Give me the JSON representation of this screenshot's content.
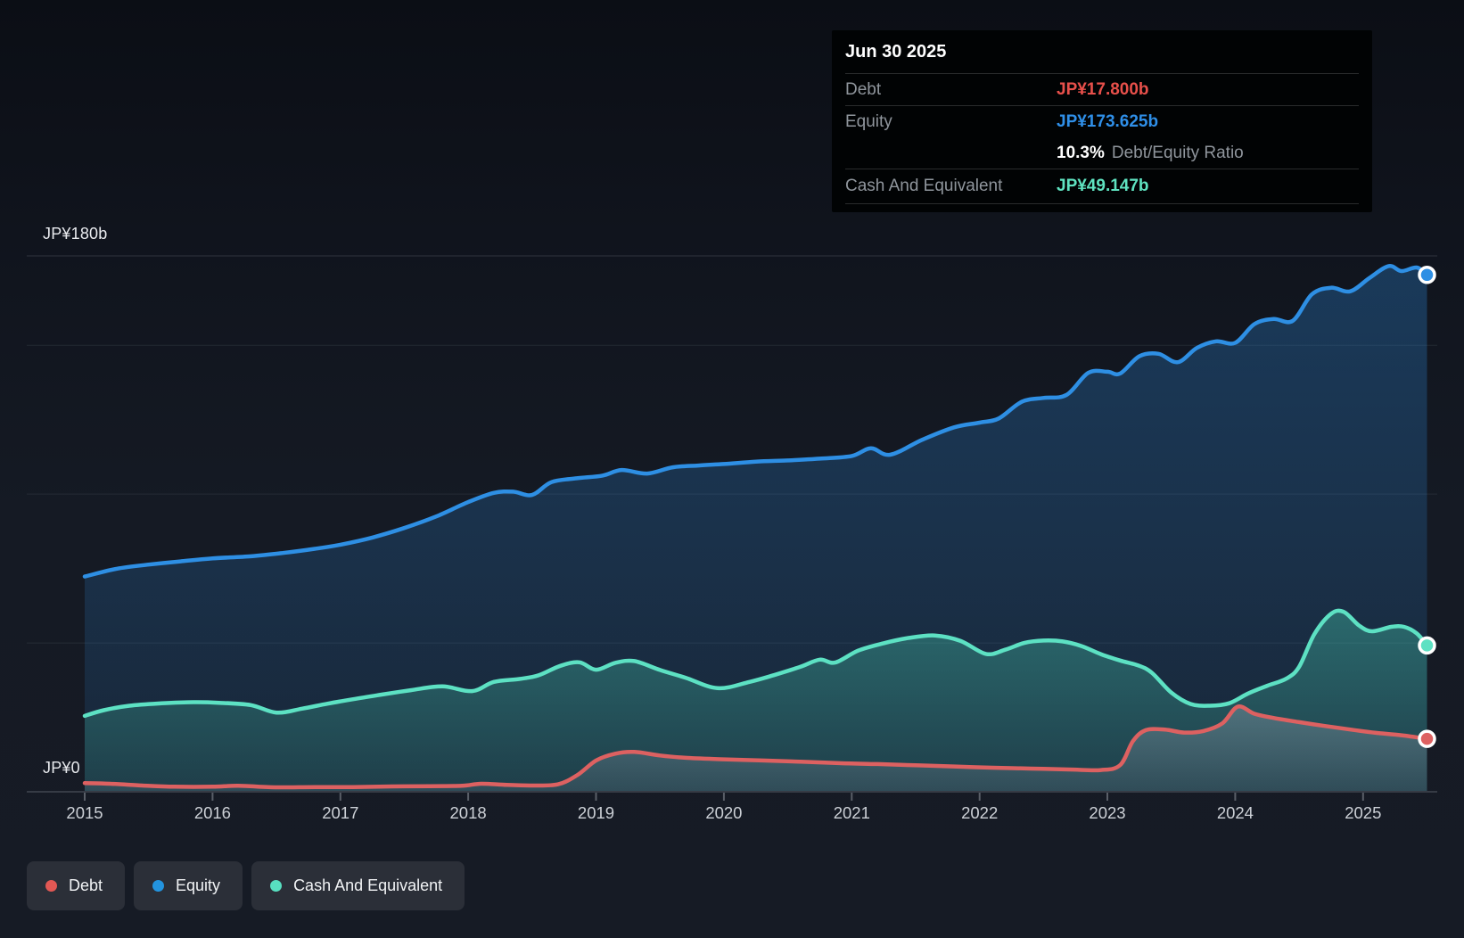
{
  "tooltip": {
    "date": "Jun 30 2025",
    "debt": {
      "label": "Debt",
      "value": "JP¥17.800b",
      "color": "#e8504b"
    },
    "equity": {
      "label": "Equity",
      "value": "JP¥173.625b",
      "color": "#2f8fe8"
    },
    "ratio": {
      "value": "10.3%",
      "label": "Debt/Equity Ratio"
    },
    "cash": {
      "label": "Cash And Equivalent",
      "value": "JP¥49.147b",
      "color": "#5fe3c1"
    }
  },
  "legend": {
    "items": [
      {
        "label": "Debt",
        "color": "#e25854"
      },
      {
        "label": "Equity",
        "color": "#2394df"
      },
      {
        "label": "Cash And Equivalent",
        "color": "#58dfc0"
      }
    ]
  },
  "colors": {
    "background": "#151a24",
    "tooltip_background": "#010304",
    "debt": "#dd6161",
    "equity": "#2e8fe4",
    "cash": "#5de1c3",
    "debt_fill": "#aab2c2",
    "gridline": "#ffffff",
    "axis_line": "#363b45",
    "tick": "#5a5f68",
    "year_label": "#ccd0d6"
  },
  "chart_data": {
    "type": "area",
    "x_ticks": [
      2015,
      2016,
      2017,
      2018,
      2019,
      2020,
      2021,
      2022,
      2023,
      2024,
      2025
    ],
    "x_range": [
      2015.0,
      2025.5
    ],
    "y_axis": {
      "top_label": "JP¥180b",
      "zero_label": "JP¥0",
      "max": 180,
      "unit": "JP¥ billions",
      "gridline_values": [
        180,
        150,
        100,
        50,
        0
      ]
    },
    "legend_position": "bottom-left",
    "series": [
      {
        "name": "Equity",
        "color": "#2e8fe4",
        "end_value": 173.625,
        "points": [
          [
            2015.0,
            72.3
          ],
          [
            2015.25,
            74.9
          ],
          [
            2015.5,
            76.3
          ],
          [
            2015.75,
            77.4
          ],
          [
            2016.0,
            78.4
          ],
          [
            2016.3,
            79.1
          ],
          [
            2016.55,
            80.2
          ],
          [
            2016.8,
            81.6
          ],
          [
            2017.0,
            83.0
          ],
          [
            2017.25,
            85.4
          ],
          [
            2017.5,
            88.6
          ],
          [
            2017.75,
            92.5
          ],
          [
            2018.0,
            97.3
          ],
          [
            2018.2,
            100.4
          ],
          [
            2018.35,
            100.8
          ],
          [
            2018.5,
            99.7
          ],
          [
            2018.65,
            104.0
          ],
          [
            2018.85,
            105.3
          ],
          [
            2019.05,
            106.2
          ],
          [
            2019.2,
            108.1
          ],
          [
            2019.4,
            106.9
          ],
          [
            2019.6,
            109.0
          ],
          [
            2019.8,
            109.6
          ],
          [
            2020.0,
            110.1
          ],
          [
            2020.25,
            110.9
          ],
          [
            2020.5,
            111.3
          ],
          [
            2020.75,
            111.9
          ],
          [
            2021.0,
            112.8
          ],
          [
            2021.15,
            115.4
          ],
          [
            2021.3,
            113.2
          ],
          [
            2021.55,
            118.2
          ],
          [
            2021.8,
            122.4
          ],
          [
            2022.0,
            124.0
          ],
          [
            2022.15,
            125.4
          ],
          [
            2022.33,
            131.0
          ],
          [
            2022.5,
            132.3
          ],
          [
            2022.68,
            133.3
          ],
          [
            2022.85,
            140.7
          ],
          [
            2023.0,
            141.1
          ],
          [
            2023.1,
            140.5
          ],
          [
            2023.25,
            146.3
          ],
          [
            2023.4,
            147.1
          ],
          [
            2023.55,
            144.3
          ],
          [
            2023.7,
            149.1
          ],
          [
            2023.85,
            151.3
          ],
          [
            2024.0,
            150.8
          ],
          [
            2024.15,
            157.1
          ],
          [
            2024.3,
            158.8
          ],
          [
            2024.45,
            158.2
          ],
          [
            2024.6,
            167.1
          ],
          [
            2024.75,
            169.3
          ],
          [
            2024.9,
            168.1
          ],
          [
            2025.05,
            172.6
          ],
          [
            2025.2,
            176.6
          ],
          [
            2025.3,
            174.9
          ],
          [
            2025.42,
            176.1
          ],
          [
            2025.5,
            173.625
          ]
        ]
      },
      {
        "name": "Cash And Equivalent",
        "color": "#5de1c3",
        "end_value": 49.147,
        "points": [
          [
            2015.0,
            25.5
          ],
          [
            2015.15,
            27.4
          ],
          [
            2015.35,
            28.9
          ],
          [
            2015.6,
            29.7
          ],
          [
            2015.85,
            30.1
          ],
          [
            2016.05,
            29.9
          ],
          [
            2016.3,
            29.1
          ],
          [
            2016.5,
            26.6
          ],
          [
            2016.7,
            27.9
          ],
          [
            2016.9,
            29.6
          ],
          [
            2017.1,
            31.1
          ],
          [
            2017.3,
            32.5
          ],
          [
            2017.55,
            34.1
          ],
          [
            2017.8,
            35.4
          ],
          [
            2018.03,
            33.8
          ],
          [
            2018.2,
            36.9
          ],
          [
            2018.4,
            37.9
          ],
          [
            2018.55,
            39.1
          ],
          [
            2018.72,
            42.3
          ],
          [
            2018.87,
            43.5
          ],
          [
            2019.0,
            41.0
          ],
          [
            2019.15,
            43.3
          ],
          [
            2019.3,
            43.9
          ],
          [
            2019.5,
            40.9
          ],
          [
            2019.7,
            38.3
          ],
          [
            2019.95,
            34.8
          ],
          [
            2020.2,
            36.9
          ],
          [
            2020.4,
            39.3
          ],
          [
            2020.6,
            42.0
          ],
          [
            2020.75,
            44.4
          ],
          [
            2020.87,
            43.4
          ],
          [
            2021.05,
            47.4
          ],
          [
            2021.25,
            49.9
          ],
          [
            2021.45,
            51.7
          ],
          [
            2021.65,
            52.5
          ],
          [
            2021.85,
            50.7
          ],
          [
            2022.05,
            46.3
          ],
          [
            2022.2,
            47.7
          ],
          [
            2022.35,
            50.0
          ],
          [
            2022.5,
            50.8
          ],
          [
            2022.65,
            50.5
          ],
          [
            2022.8,
            48.9
          ],
          [
            2022.95,
            46.2
          ],
          [
            2023.1,
            44.1
          ],
          [
            2023.25,
            42.3
          ],
          [
            2023.35,
            39.9
          ],
          [
            2023.5,
            33.3
          ],
          [
            2023.65,
            29.5
          ],
          [
            2023.8,
            28.9
          ],
          [
            2023.95,
            29.7
          ],
          [
            2024.1,
            33.0
          ],
          [
            2024.25,
            35.6
          ],
          [
            2024.4,
            38.0
          ],
          [
            2024.5,
            42.0
          ],
          [
            2024.62,
            53.0
          ],
          [
            2024.75,
            59.8
          ],
          [
            2024.85,
            60.4
          ],
          [
            2024.97,
            55.8
          ],
          [
            2025.07,
            53.9
          ],
          [
            2025.22,
            55.4
          ],
          [
            2025.32,
            55.4
          ],
          [
            2025.42,
            53.2
          ],
          [
            2025.5,
            49.147
          ]
        ]
      },
      {
        "name": "Debt",
        "color": "#dd6161",
        "end_value": 17.8,
        "points": [
          [
            2015.0,
            2.9
          ],
          [
            2015.2,
            2.7
          ],
          [
            2015.45,
            2.1
          ],
          [
            2015.7,
            1.7
          ],
          [
            2016.0,
            1.7
          ],
          [
            2016.2,
            2.0
          ],
          [
            2016.5,
            1.5
          ],
          [
            2016.8,
            1.6
          ],
          [
            2017.1,
            1.6
          ],
          [
            2017.4,
            1.8
          ],
          [
            2017.7,
            1.9
          ],
          [
            2017.95,
            2.0
          ],
          [
            2018.1,
            2.7
          ],
          [
            2018.3,
            2.3
          ],
          [
            2018.5,
            2.1
          ],
          [
            2018.7,
            2.5
          ],
          [
            2018.85,
            5.5
          ],
          [
            2019.0,
            10.5
          ],
          [
            2019.15,
            12.8
          ],
          [
            2019.3,
            13.4
          ],
          [
            2019.5,
            12.2
          ],
          [
            2019.7,
            11.4
          ],
          [
            2020.0,
            10.9
          ],
          [
            2020.3,
            10.5
          ],
          [
            2020.6,
            10.1
          ],
          [
            2020.9,
            9.6
          ],
          [
            2021.2,
            9.3
          ],
          [
            2021.5,
            8.9
          ],
          [
            2021.8,
            8.5
          ],
          [
            2022.1,
            8.1
          ],
          [
            2022.4,
            7.8
          ],
          [
            2022.7,
            7.5
          ],
          [
            2022.95,
            7.3
          ],
          [
            2023.1,
            9.0
          ],
          [
            2023.2,
            17.0
          ],
          [
            2023.3,
            20.7
          ],
          [
            2023.45,
            20.9
          ],
          [
            2023.6,
            19.9
          ],
          [
            2023.75,
            20.4
          ],
          [
            2023.9,
            23.0
          ],
          [
            2024.02,
            28.6
          ],
          [
            2024.15,
            26.2
          ],
          [
            2024.3,
            24.8
          ],
          [
            2024.5,
            23.4
          ],
          [
            2024.7,
            22.1
          ],
          [
            2024.9,
            20.9
          ],
          [
            2025.1,
            19.8
          ],
          [
            2025.3,
            19.0
          ],
          [
            2025.5,
            17.8
          ]
        ]
      }
    ]
  }
}
